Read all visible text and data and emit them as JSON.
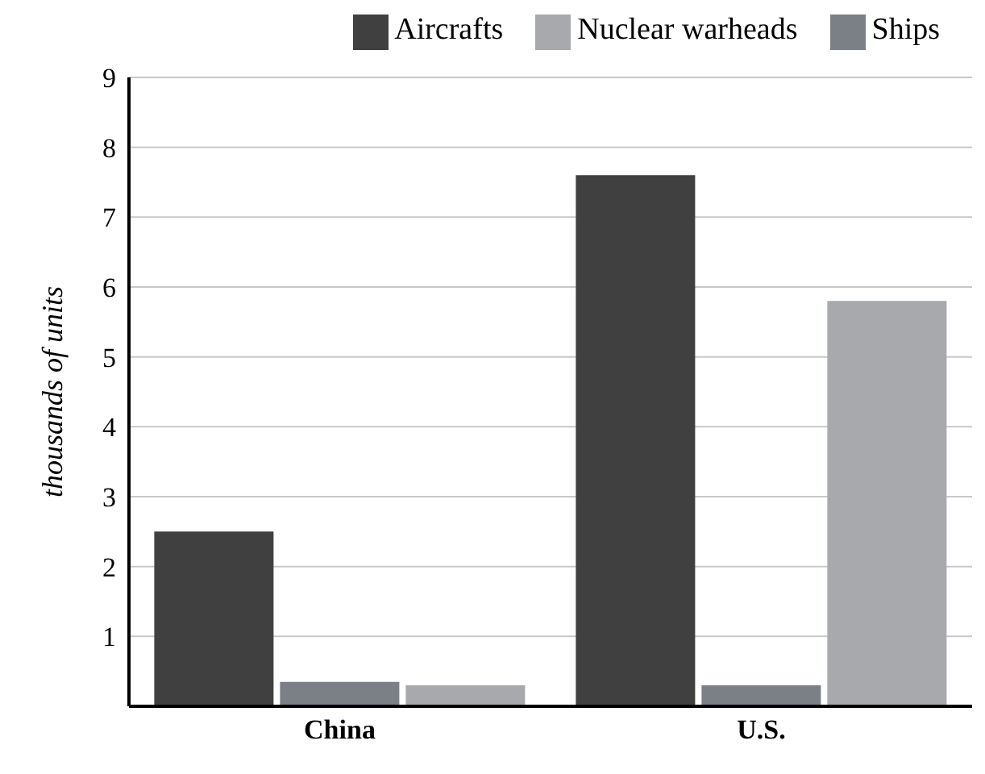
{
  "chart_data": {
    "type": "bar",
    "ylabel": "thousands of units",
    "categories": [
      "China",
      "U.S."
    ],
    "series": [
      {
        "name": "Aircrafts",
        "color": "#404040",
        "values": [
          2.5,
          7.6
        ]
      },
      {
        "name": "Ships",
        "color": "#7b7f86",
        "values": [
          0.35,
          0.3
        ]
      },
      {
        "name": "Nuclear warheads",
        "color": "#a7a9ac",
        "values": [
          0.3,
          5.8
        ]
      }
    ],
    "ylim": [
      0,
      9
    ],
    "yticks": [
      1,
      2,
      3,
      4,
      5,
      6,
      7,
      8,
      9
    ],
    "grid": "y",
    "legend": "top"
  }
}
